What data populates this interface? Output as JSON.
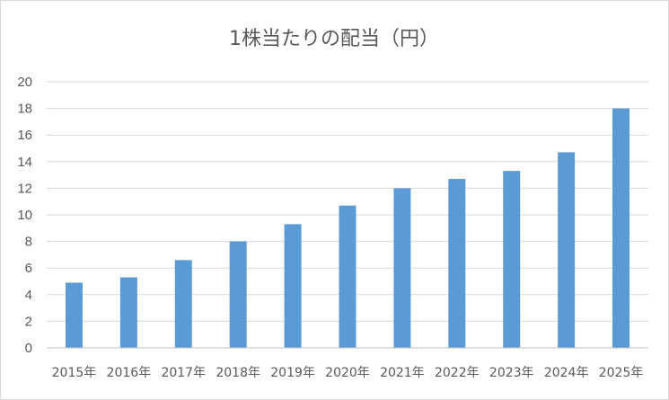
{
  "chart_data": {
    "type": "bar",
    "title": "1株当たりの配当（円）",
    "categories": [
      "2015年",
      "2016年",
      "2017年",
      "2018年",
      "2019年",
      "2020年",
      "2021年",
      "2022年",
      "2023年",
      "2024年",
      "2025年"
    ],
    "values": [
      4.9,
      5.3,
      6.6,
      8.0,
      9.3,
      10.7,
      12.0,
      12.7,
      13.3,
      14.7,
      18.0
    ],
    "ylim": [
      0,
      20
    ],
    "yticks": [
      0,
      2,
      4,
      6,
      8,
      10,
      12,
      14,
      16,
      18,
      20
    ],
    "grid": true,
    "bar_color": "#5b9bd5",
    "legend": "none"
  }
}
